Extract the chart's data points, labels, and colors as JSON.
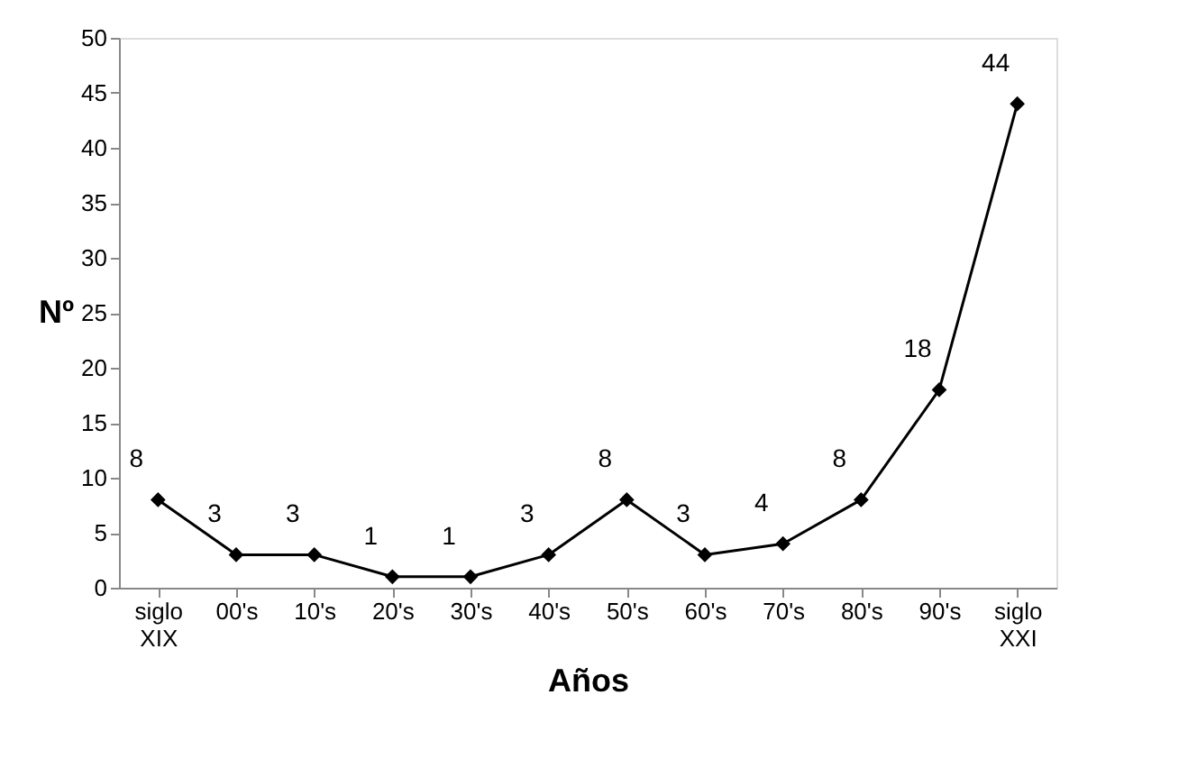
{
  "chart_data": {
    "type": "line",
    "xlabel": "Años",
    "ylabel": "Nº",
    "categories": [
      "siglo XIX",
      "00's",
      "10's",
      "20's",
      "30's",
      "40's",
      "50's",
      "60's",
      "70's",
      "80's",
      "90's",
      "siglo XXI"
    ],
    "series": [
      {
        "color": "#000000",
        "values": [
          8,
          3,
          3,
          1,
          1,
          3,
          8,
          3,
          4,
          8,
          18,
          44
        ]
      }
    ],
    "ylim": [
      0,
      50
    ],
    "yticks": [
      0,
      5,
      10,
      15,
      20,
      25,
      30,
      35,
      40,
      45,
      50
    ],
    "data_labels": true,
    "marker": "diamond",
    "line_style": "solid",
    "grid": false
  }
}
